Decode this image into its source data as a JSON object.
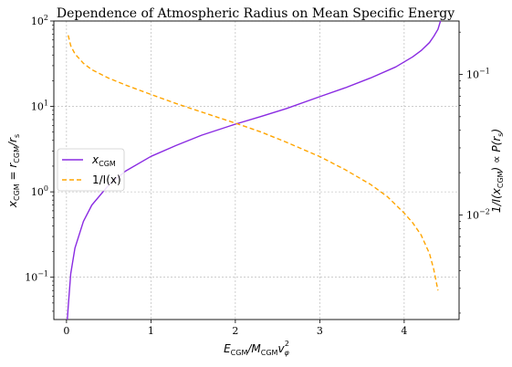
{
  "chart_data": {
    "type": "line",
    "title": "Dependence of Atmospheric Radius on Mean Specific Energy",
    "xlabel": {
      "pre": "E",
      "pre_sub": "CGM",
      "mid": "/M",
      "mid_sub": "CGM",
      "post": "v",
      "post_sub": "φ",
      "post_sup": "2"
    },
    "ylabel_left": {
      "pre": "x",
      "pre_sub": "CGM",
      "mid": " = r",
      "mid_sub": "CGM",
      "post": "/r",
      "post_sub": "s"
    },
    "ylabel_right": {
      "pre": "1/I(x",
      "pre_sub": "CGM",
      "mid": ") ∝ P(r",
      "mid_sub": "s",
      "post": ")"
    },
    "x_ticks": [
      0,
      1,
      2,
      3,
      4
    ],
    "x_tick_labels": [
      "0",
      "1",
      "2",
      "3",
      "4"
    ],
    "xlim": [
      -0.15,
      4.65
    ],
    "y_left_log": true,
    "y_left_lim": [
      0.032,
      100
    ],
    "y_left_ticks": [
      {
        "value": 0.1,
        "base": "10",
        "exp": "−1"
      },
      {
        "value": 1,
        "base": "10",
        "exp": "0"
      },
      {
        "value": 10,
        "base": "10",
        "exp": "1"
      },
      {
        "value": 100,
        "base": "10",
        "exp": "2"
      }
    ],
    "y_right_log": true,
    "y_right_lim": [
      0.0018,
      0.24
    ],
    "y_right_ticks": [
      {
        "value": 0.01,
        "base": "10",
        "exp": "−2"
      },
      {
        "value": 0.1,
        "base": "10",
        "exp": "−1"
      }
    ],
    "grid": true,
    "legend_position": "center-left",
    "series": [
      {
        "name": "x_CGM",
        "legend": {
          "pre": "x",
          "sub": "CGM"
        },
        "axis": "left",
        "color": "#8a2be2",
        "dash": "solid",
        "x": [
          0.01,
          0.02,
          0.05,
          0.1,
          0.2,
          0.3,
          0.5,
          0.7,
          1.0,
          1.3,
          1.6,
          2.0,
          2.3,
          2.6,
          3.0,
          3.3,
          3.6,
          3.9,
          4.1,
          4.2,
          4.3,
          4.35,
          4.4,
          4.43
        ],
        "y": [
          0.032,
          0.045,
          0.11,
          0.22,
          0.45,
          0.7,
          1.2,
          1.75,
          2.6,
          3.5,
          4.6,
          6.2,
          7.6,
          9.4,
          13,
          16.5,
          21.5,
          29,
          38,
          45,
          56,
          66,
          80,
          100
        ]
      },
      {
        "name": "1/I(x)",
        "legend": {
          "pre": "1/I(x)",
          "sub": ""
        },
        "axis": "right",
        "color": "#ffa500",
        "dash": "dashed",
        "x": [
          0.02,
          0.05,
          0.1,
          0.2,
          0.3,
          0.5,
          0.7,
          1.0,
          1.3,
          1.6,
          2.0,
          2.3,
          2.6,
          3.0,
          3.3,
          3.6,
          3.8,
          4.0,
          4.1,
          4.2,
          4.3,
          4.35,
          4.4
        ],
        "y": [
          0.19,
          0.16,
          0.14,
          0.12,
          0.108,
          0.094,
          0.084,
          0.072,
          0.062,
          0.054,
          0.045,
          0.039,
          0.033,
          0.026,
          0.021,
          0.0165,
          0.0135,
          0.0103,
          0.0088,
          0.0072,
          0.0053,
          0.0041,
          0.0029
        ]
      }
    ]
  }
}
